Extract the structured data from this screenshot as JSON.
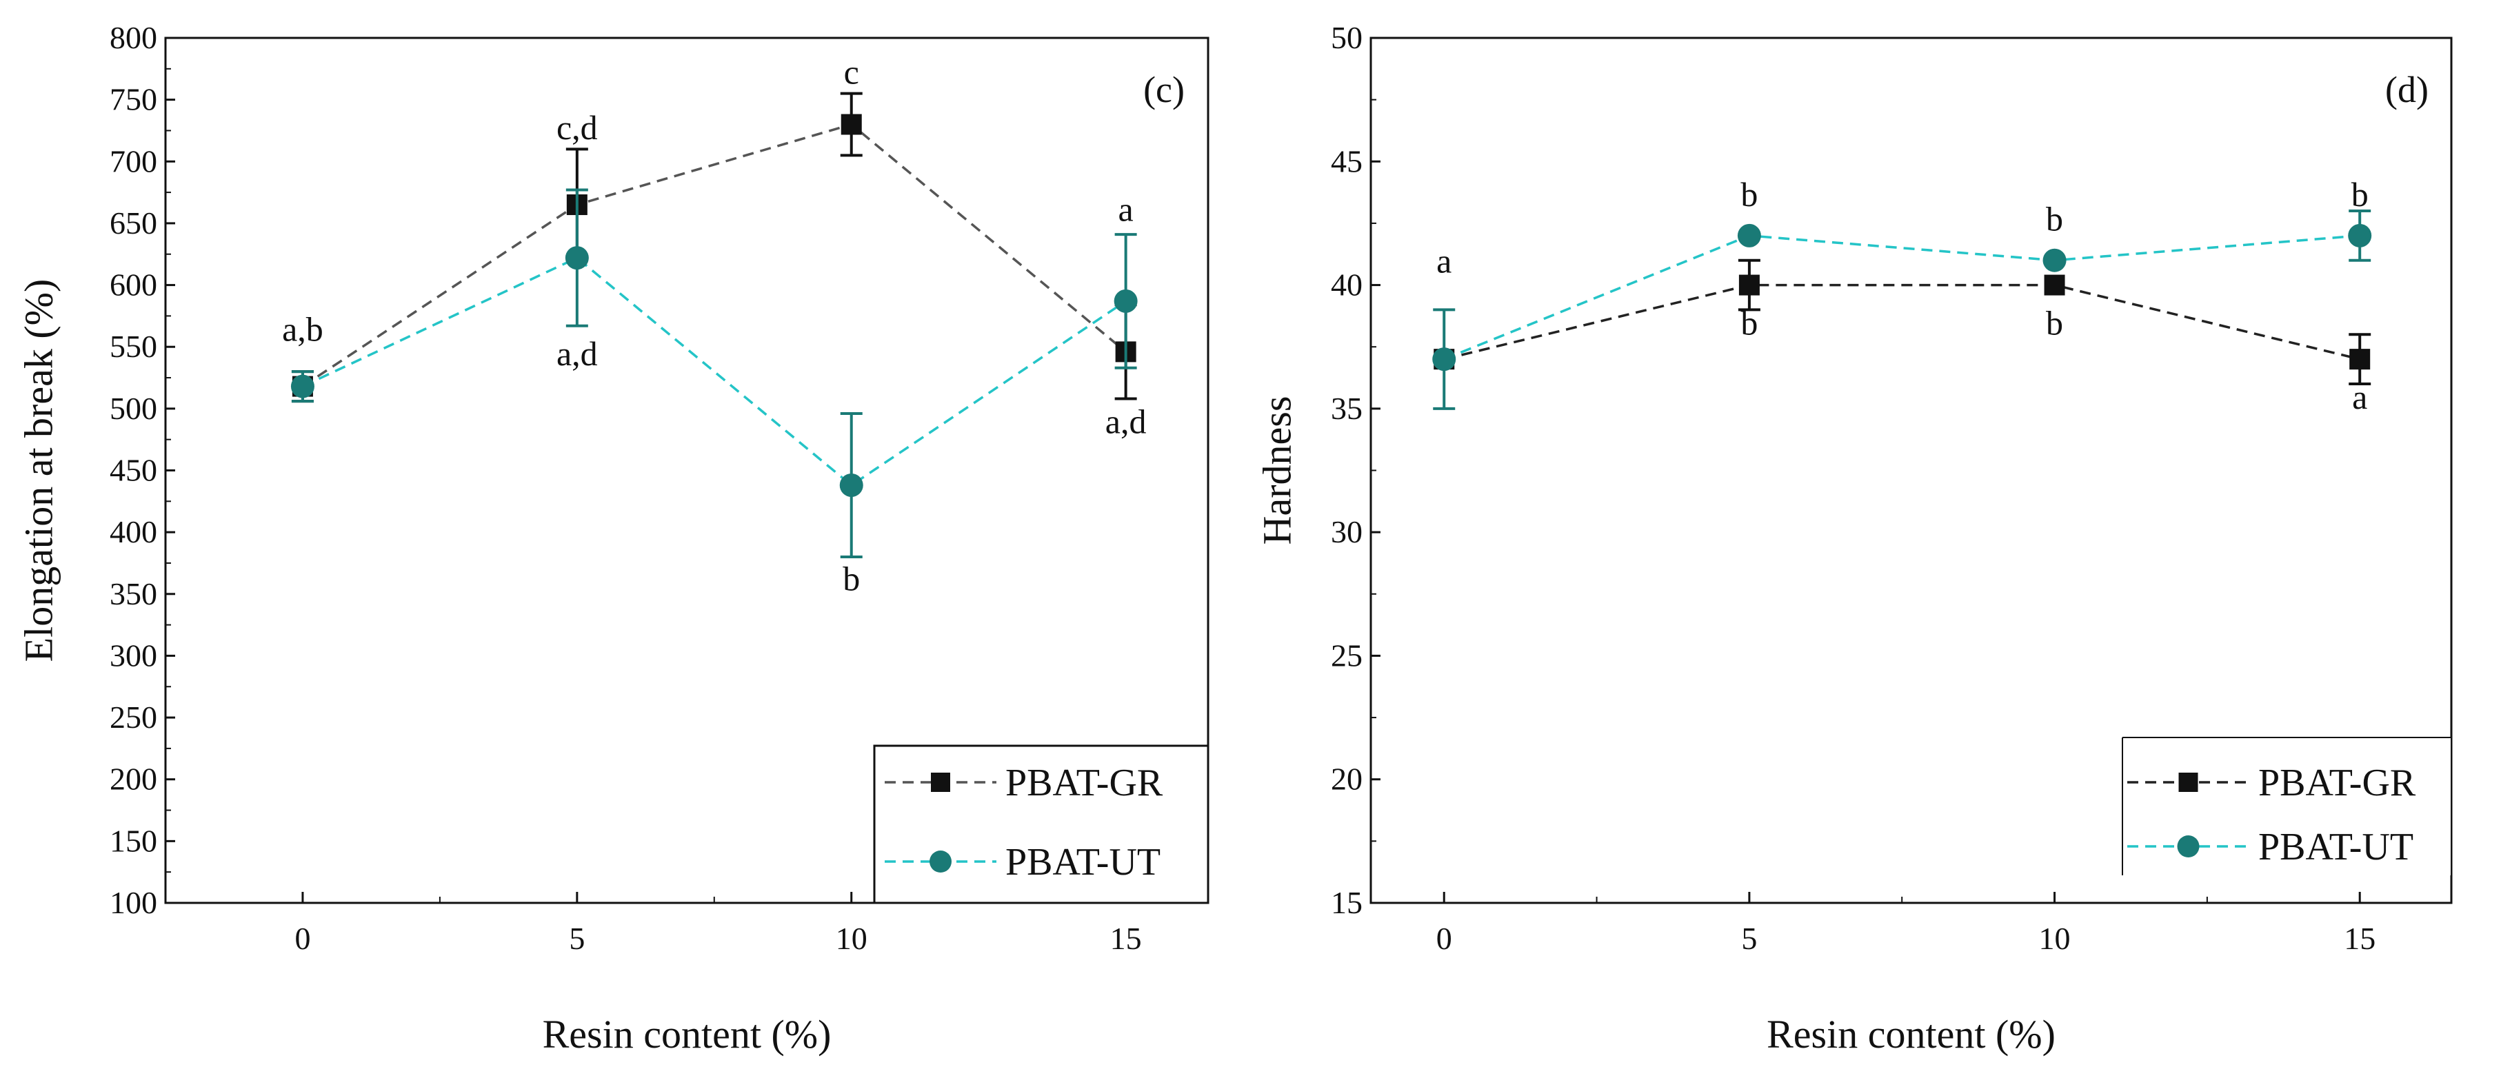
{
  "chart_data": [
    {
      "type": "line",
      "panel_tag": "(c)",
      "xlabel": "Resin content (%)",
      "ylabel": "Elongation at break (%)",
      "x": [
        0,
        5,
        10,
        15
      ],
      "xticks": [
        "0",
        "5",
        "10",
        "15"
      ],
      "xlim": [
        -2.5,
        16.5
      ],
      "ylim": [
        100,
        800
      ],
      "yticks": [
        "100",
        "150",
        "200",
        "250",
        "300",
        "350",
        "400",
        "450",
        "500",
        "550",
        "600",
        "650",
        "700",
        "750",
        "800"
      ],
      "legend_position": "bottom-right",
      "series": [
        {
          "name": "PBAT-GR",
          "color": "#111111",
          "line_color": "#555555",
          "marker": "square",
          "values": [
            518,
            665,
            730,
            546
          ],
          "errors": [
            12,
            45,
            25,
            38
          ]
        },
        {
          "name": "PBAT-UT",
          "color": "#1a7a76",
          "line_color": "#24c4c7",
          "marker": "circle",
          "values": [
            518,
            622,
            438,
            587
          ],
          "errors": [
            12,
            55,
            58,
            54
          ]
        }
      ],
      "annotations": [
        {
          "text": "a,b",
          "x": 0,
          "y": 555
        },
        {
          "text": "c,d",
          "x": 5,
          "y": 718
        },
        {
          "text": "a,d",
          "x": 5,
          "y": 535
        },
        {
          "text": "c",
          "x": 10,
          "y": 763
        },
        {
          "text": "b",
          "x": 10,
          "y": 353
        },
        {
          "text": "a",
          "x": 15,
          "y": 652
        },
        {
          "text": "a,d",
          "x": 15,
          "y": 480
        }
      ]
    },
    {
      "type": "line",
      "panel_tag": "(d)",
      "xlabel": "Resin content (%)",
      "ylabel": "Hardness",
      "x": [
        0,
        5,
        10,
        15
      ],
      "xticks": [
        "0",
        "5",
        "10",
        "15"
      ],
      "xlim": [
        -1.2,
        16.5
      ],
      "ylim": [
        15,
        50
      ],
      "yticks": [
        "15",
        "20",
        "25",
        "30",
        "35",
        "40",
        "45",
        "50"
      ],
      "legend_position": "bottom-right",
      "series": [
        {
          "name": "PBAT-GR",
          "color": "#111111",
          "line_color": "#222222",
          "marker": "square",
          "values": [
            37,
            40,
            40,
            37
          ],
          "errors": [
            0,
            1,
            0,
            1
          ]
        },
        {
          "name": "PBAT-UT",
          "color": "#1a7a76",
          "line_color": "#24c4c7",
          "marker": "circle",
          "values": [
            37,
            42,
            41,
            42
          ],
          "errors": [
            2,
            0,
            0,
            1
          ]
        }
      ],
      "annotations": [
        {
          "text": "a",
          "x": 0,
          "y": 40.5
        },
        {
          "text": "b",
          "x": 5,
          "y": 43.2
        },
        {
          "text": "b",
          "x": 5,
          "y": 38.0
        },
        {
          "text": "b",
          "x": 10,
          "y": 42.2
        },
        {
          "text": "b",
          "x": 10,
          "y": 38.0
        },
        {
          "text": "b",
          "x": 15,
          "y": 43.2
        },
        {
          "text": "a",
          "x": 15,
          "y": 35.0
        }
      ]
    }
  ]
}
